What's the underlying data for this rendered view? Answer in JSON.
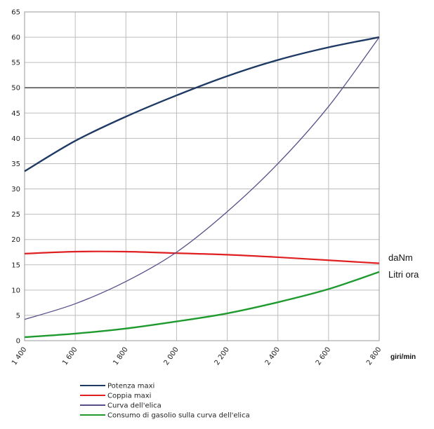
{
  "chart_data": {
    "type": "line",
    "x": [
      1400,
      1600,
      1800,
      2000,
      2200,
      2400,
      2600,
      2800
    ],
    "x_tick_labels": [
      "1 400",
      "1 600",
      "1 800",
      "2 000",
      "2 200",
      "2 400",
      "2 600",
      "2 800"
    ],
    "xlim": [
      1400,
      2800
    ],
    "ylim": [
      0,
      65
    ],
    "y_ticks": [
      0,
      5,
      10,
      15,
      20,
      25,
      30,
      35,
      40,
      45,
      50,
      55,
      60,
      65
    ],
    "xlabel": "giri/min",
    "grid": true,
    "highlight_y": 50,
    "side_labels": [
      "daNm",
      "Litri ora"
    ],
    "legend_position": "bottom",
    "series": [
      {
        "name": "Potenza maxi",
        "color": "#1f3a63",
        "values": [
          33.5,
          39.5,
          44.3,
          48.5,
          52.3,
          55.5,
          58,
          60
        ]
      },
      {
        "name": "Coppia maxi",
        "color": "#e02020",
        "values": [
          17.2,
          17.6,
          17.6,
          17.3,
          17,
          16.5,
          15.9,
          15.3
        ]
      },
      {
        "name": "Curva dell'elica",
        "color": "#5a4e8a",
        "values": [
          4.2,
          7.3,
          11.7,
          17.5,
          25.5,
          35,
          46.3,
          60
        ]
      },
      {
        "name": "Consumo di gasolio sulla curva dell'elica",
        "color": "#1e9a2e",
        "values": [
          0.7,
          1.4,
          2.4,
          3.8,
          5.4,
          7.6,
          10.2,
          13.6
        ]
      }
    ]
  }
}
